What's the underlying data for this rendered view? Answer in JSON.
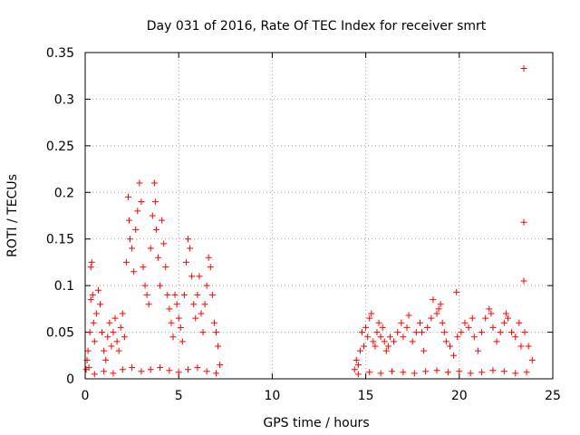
{
  "chart_data": {
    "type": "scatter",
    "title": "Day 031 of 2016, Rate Of TEC Index for receiver smrt",
    "xlabel": "GPS time / hours",
    "ylabel": "ROTI / TECUs",
    "xlim": [
      0,
      25
    ],
    "ylim": [
      0,
      0.35
    ],
    "xticks": [
      "0",
      "5",
      "10",
      "15",
      "20",
      "25"
    ],
    "yticks": [
      "0",
      "0.05",
      "0.1",
      "0.15",
      "0.2",
      "0.25",
      "0.3",
      "0.35"
    ],
    "grid": true,
    "marker": "+",
    "color": "#ff0000",
    "series": [
      {
        "points": [
          [
            0.05,
            0.01
          ],
          [
            0.1,
            0.02
          ],
          [
            0.15,
            0.03
          ],
          [
            0.2,
            0.012
          ],
          [
            0.25,
            0.05
          ],
          [
            0.3,
            0.085
          ],
          [
            0.3,
            0.12
          ],
          [
            0.35,
            0.125
          ],
          [
            0.4,
            0.09
          ],
          [
            0.45,
            0.06
          ],
          [
            0.5,
            0.04
          ],
          [
            0.6,
            0.07
          ],
          [
            0.7,
            0.095
          ],
          [
            0.8,
            0.08
          ],
          [
            0.9,
            0.05
          ],
          [
            1.0,
            0.03
          ],
          [
            1.1,
            0.02
          ],
          [
            1.2,
            0.045
          ],
          [
            1.3,
            0.06
          ],
          [
            1.4,
            0.035
          ],
          [
            1.5,
            0.05
          ],
          [
            1.6,
            0.065
          ],
          [
            1.7,
            0.04
          ],
          [
            1.8,
            0.03
          ],
          [
            1.9,
            0.055
          ],
          [
            2.0,
            0.07
          ],
          [
            2.1,
            0.045
          ],
          [
            2.2,
            0.125
          ],
          [
            2.3,
            0.195
          ],
          [
            2.35,
            0.17
          ],
          [
            2.4,
            0.15
          ],
          [
            2.5,
            0.14
          ],
          [
            2.6,
            0.115
          ],
          [
            2.7,
            0.16
          ],
          [
            2.8,
            0.18
          ],
          [
            2.9,
            0.21
          ],
          [
            3.0,
            0.19
          ],
          [
            3.1,
            0.12
          ],
          [
            3.2,
            0.1
          ],
          [
            3.3,
            0.09
          ],
          [
            3.4,
            0.08
          ],
          [
            3.5,
            0.14
          ],
          [
            3.6,
            0.175
          ],
          [
            3.7,
            0.21
          ],
          [
            3.75,
            0.19
          ],
          [
            3.8,
            0.16
          ],
          [
            3.9,
            0.13
          ],
          [
            4.0,
            0.1
          ],
          [
            4.1,
            0.17
          ],
          [
            4.2,
            0.145
          ],
          [
            4.3,
            0.12
          ],
          [
            4.4,
            0.09
          ],
          [
            4.5,
            0.075
          ],
          [
            4.6,
            0.06
          ],
          [
            4.7,
            0.045
          ],
          [
            4.8,
            0.09
          ],
          [
            4.9,
            0.08
          ],
          [
            5.0,
            0.065
          ],
          [
            5.1,
            0.055
          ],
          [
            5.2,
            0.04
          ],
          [
            5.3,
            0.09
          ],
          [
            5.4,
            0.125
          ],
          [
            5.5,
            0.15
          ],
          [
            5.6,
            0.14
          ],
          [
            5.7,
            0.11
          ],
          [
            5.8,
            0.08
          ],
          [
            5.9,
            0.065
          ],
          [
            6.0,
            0.09
          ],
          [
            6.1,
            0.11
          ],
          [
            6.2,
            0.07
          ],
          [
            6.3,
            0.05
          ],
          [
            6.4,
            0.08
          ],
          [
            6.5,
            0.1
          ],
          [
            6.6,
            0.13
          ],
          [
            6.7,
            0.12
          ],
          [
            6.8,
            0.09
          ],
          [
            6.9,
            0.06
          ],
          [
            7.0,
            0.05
          ],
          [
            7.1,
            0.035
          ],
          [
            7.2,
            0.015
          ],
          [
            0.5,
            0.005
          ],
          [
            1.0,
            0.008
          ],
          [
            1.5,
            0.006
          ],
          [
            2.0,
            0.01
          ],
          [
            2.5,
            0.012
          ],
          [
            3.0,
            0.008
          ],
          [
            3.5,
            0.01
          ],
          [
            4.0,
            0.012
          ],
          [
            4.5,
            0.009
          ],
          [
            5.0,
            0.007
          ],
          [
            5.5,
            0.01
          ],
          [
            6.0,
            0.012
          ],
          [
            6.5,
            0.008
          ],
          [
            7.0,
            0.006
          ],
          [
            14.4,
            0.01
          ],
          [
            14.5,
            0.02
          ],
          [
            14.6,
            0.015
          ],
          [
            14.7,
            0.03
          ],
          [
            14.8,
            0.05
          ],
          [
            14.9,
            0.035
          ],
          [
            15.0,
            0.055
          ],
          [
            15.1,
            0.045
          ],
          [
            15.2,
            0.065
          ],
          [
            15.3,
            0.07
          ],
          [
            15.4,
            0.04
          ],
          [
            15.5,
            0.035
          ],
          [
            15.6,
            0.05
          ],
          [
            15.7,
            0.06
          ],
          [
            15.8,
            0.045
          ],
          [
            15.9,
            0.055
          ],
          [
            16.0,
            0.04
          ],
          [
            16.1,
            0.03
          ],
          [
            16.2,
            0.035
          ],
          [
            16.3,
            0.045
          ],
          [
            16.5,
            0.04
          ],
          [
            16.7,
            0.05
          ],
          [
            16.9,
            0.06
          ],
          [
            17.0,
            0.045
          ],
          [
            17.2,
            0.055
          ],
          [
            17.3,
            0.068
          ],
          [
            17.5,
            0.04
          ],
          [
            17.7,
            0.05
          ],
          [
            17.9,
            0.06
          ],
          [
            18.0,
            0.05
          ],
          [
            18.1,
            0.03
          ],
          [
            18.3,
            0.055
          ],
          [
            18.5,
            0.065
          ],
          [
            18.6,
            0.085
          ],
          [
            18.8,
            0.07
          ],
          [
            18.9,
            0.075
          ],
          [
            19.0,
            0.08
          ],
          [
            19.1,
            0.06
          ],
          [
            19.2,
            0.05
          ],
          [
            19.3,
            0.04
          ],
          [
            19.5,
            0.035
          ],
          [
            19.7,
            0.025
          ],
          [
            19.85,
            0.093
          ],
          [
            19.9,
            0.045
          ],
          [
            20.1,
            0.05
          ],
          [
            20.3,
            0.06
          ],
          [
            20.5,
            0.055
          ],
          [
            20.7,
            0.065
          ],
          [
            20.8,
            0.045
          ],
          [
            21.0,
            0.03
          ],
          [
            21.2,
            0.05
          ],
          [
            21.4,
            0.065
          ],
          [
            21.6,
            0.075
          ],
          [
            21.7,
            0.07
          ],
          [
            21.8,
            0.055
          ],
          [
            22.0,
            0.04
          ],
          [
            22.2,
            0.05
          ],
          [
            22.4,
            0.06
          ],
          [
            22.5,
            0.07
          ],
          [
            22.6,
            0.065
          ],
          [
            22.8,
            0.05
          ],
          [
            23.0,
            0.045
          ],
          [
            23.2,
            0.06
          ],
          [
            23.3,
            0.035
          ],
          [
            23.45,
            0.333
          ],
          [
            23.45,
            0.168
          ],
          [
            23.45,
            0.105
          ],
          [
            23.5,
            0.05
          ],
          [
            23.7,
            0.035
          ],
          [
            23.9,
            0.02
          ],
          [
            14.6,
            0.005
          ],
          [
            15.2,
            0.007
          ],
          [
            15.8,
            0.006
          ],
          [
            16.4,
            0.008
          ],
          [
            17.0,
            0.007
          ],
          [
            17.6,
            0.006
          ],
          [
            18.2,
            0.008
          ],
          [
            18.8,
            0.009
          ],
          [
            19.4,
            0.007
          ],
          [
            20.0,
            0.008
          ],
          [
            20.6,
            0.006
          ],
          [
            21.2,
            0.007
          ],
          [
            21.8,
            0.009
          ],
          [
            22.4,
            0.008
          ],
          [
            23.0,
            0.006
          ],
          [
            23.6,
            0.007
          ]
        ]
      }
    ]
  }
}
